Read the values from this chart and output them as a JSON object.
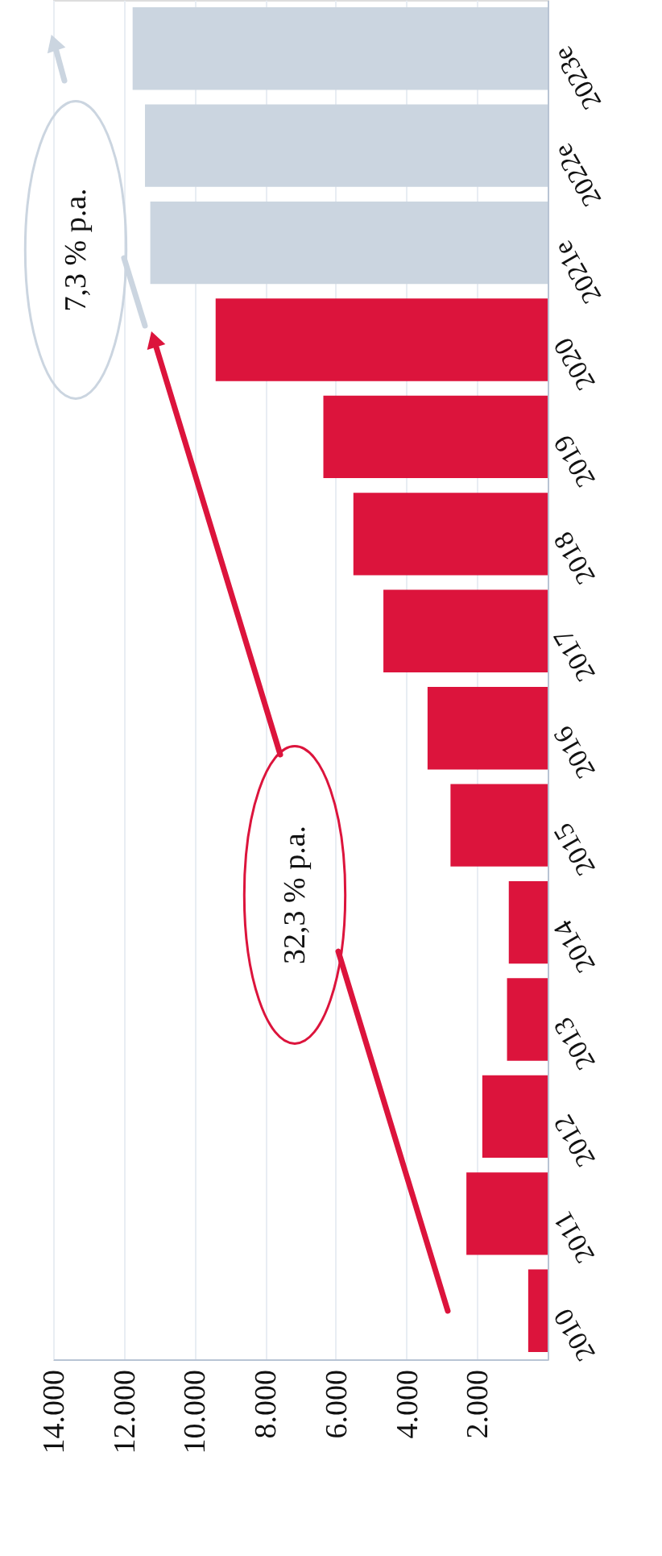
{
  "chart_data": {
    "type": "bar",
    "orientation": "horizontal",
    "categories": [
      "2023e",
      "2022e",
      "2021e",
      "2020",
      "2019",
      "2018",
      "2017",
      "2016",
      "2015",
      "2014",
      "2013",
      "2012",
      "2011",
      "2010"
    ],
    "values": [
      11750,
      11400,
      11250,
      9400,
      6350,
      5500,
      4650,
      3400,
      2750,
      1100,
      1150,
      1850,
      2300,
      550
    ],
    "colors": [
      "#cbd5e0",
      "#cbd5e0",
      "#cbd5e0",
      "#dc143c",
      "#dc143c",
      "#dc143c",
      "#dc143c",
      "#dc143c",
      "#dc143c",
      "#dc143c",
      "#dc143c",
      "#dc143c",
      "#dc143c",
      "#dc143c"
    ],
    "xlim": [
      14000,
      0
    ],
    "xticks": [
      {
        "value": 14000,
        "label": "14.000"
      },
      {
        "value": 12000,
        "label": "12.000"
      },
      {
        "value": 10000,
        "label": "10.000"
      },
      {
        "value": 8000,
        "label": "8.000"
      },
      {
        "value": 6000,
        "label": "6.000"
      },
      {
        "value": 4000,
        "label": "4.000"
      },
      {
        "value": 2000,
        "label": "2.000"
      }
    ],
    "grid": "x",
    "annotations": [
      "32,3 % p.a.",
      "7,3 % p.a."
    ]
  }
}
